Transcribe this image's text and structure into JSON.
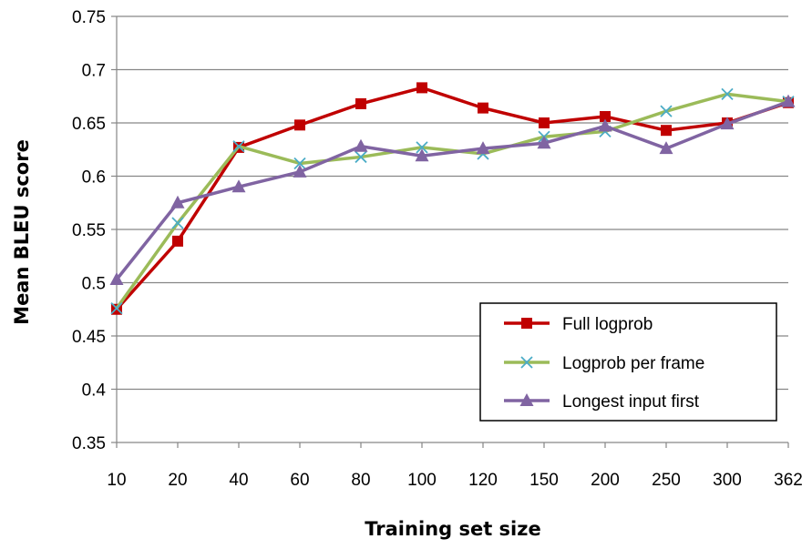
{
  "chart_data": {
    "type": "line",
    "title": "",
    "xlabel": "Training set size",
    "ylabel": "Mean BLEU score",
    "categories": [
      "10",
      "20",
      "40",
      "60",
      "80",
      "100",
      "120",
      "150",
      "200",
      "250",
      "300",
      "362"
    ],
    "ylim": [
      0.35,
      0.75
    ],
    "yticks": [
      "0.35",
      "0.4",
      "0.45",
      "0.5",
      "0.55",
      "0.6",
      "0.65",
      "0.7",
      "0.75"
    ],
    "grid": "horizontal",
    "legend_position": "bottom-right",
    "series": [
      {
        "name": "Full logprob",
        "color": "#c00000",
        "marker": "square",
        "values": [
          0.475,
          0.539,
          0.627,
          0.648,
          0.668,
          0.683,
          0.664,
          0.65,
          0.656,
          0.643,
          0.65,
          0.669
        ]
      },
      {
        "name": "Logprob per frame",
        "color": "#9bbb59",
        "marker_color": "#4bacc6",
        "marker": "x",
        "values": [
          0.476,
          0.556,
          0.628,
          0.612,
          0.618,
          0.627,
          0.621,
          0.637,
          0.642,
          0.661,
          0.677,
          0.67
        ]
      },
      {
        "name": "Longest input first",
        "color": "#8064a2",
        "marker": "triangle",
        "values": [
          0.503,
          0.575,
          0.59,
          0.604,
          0.628,
          0.619,
          0.626,
          0.631,
          0.647,
          0.626,
          0.649,
          0.67
        ]
      }
    ]
  }
}
